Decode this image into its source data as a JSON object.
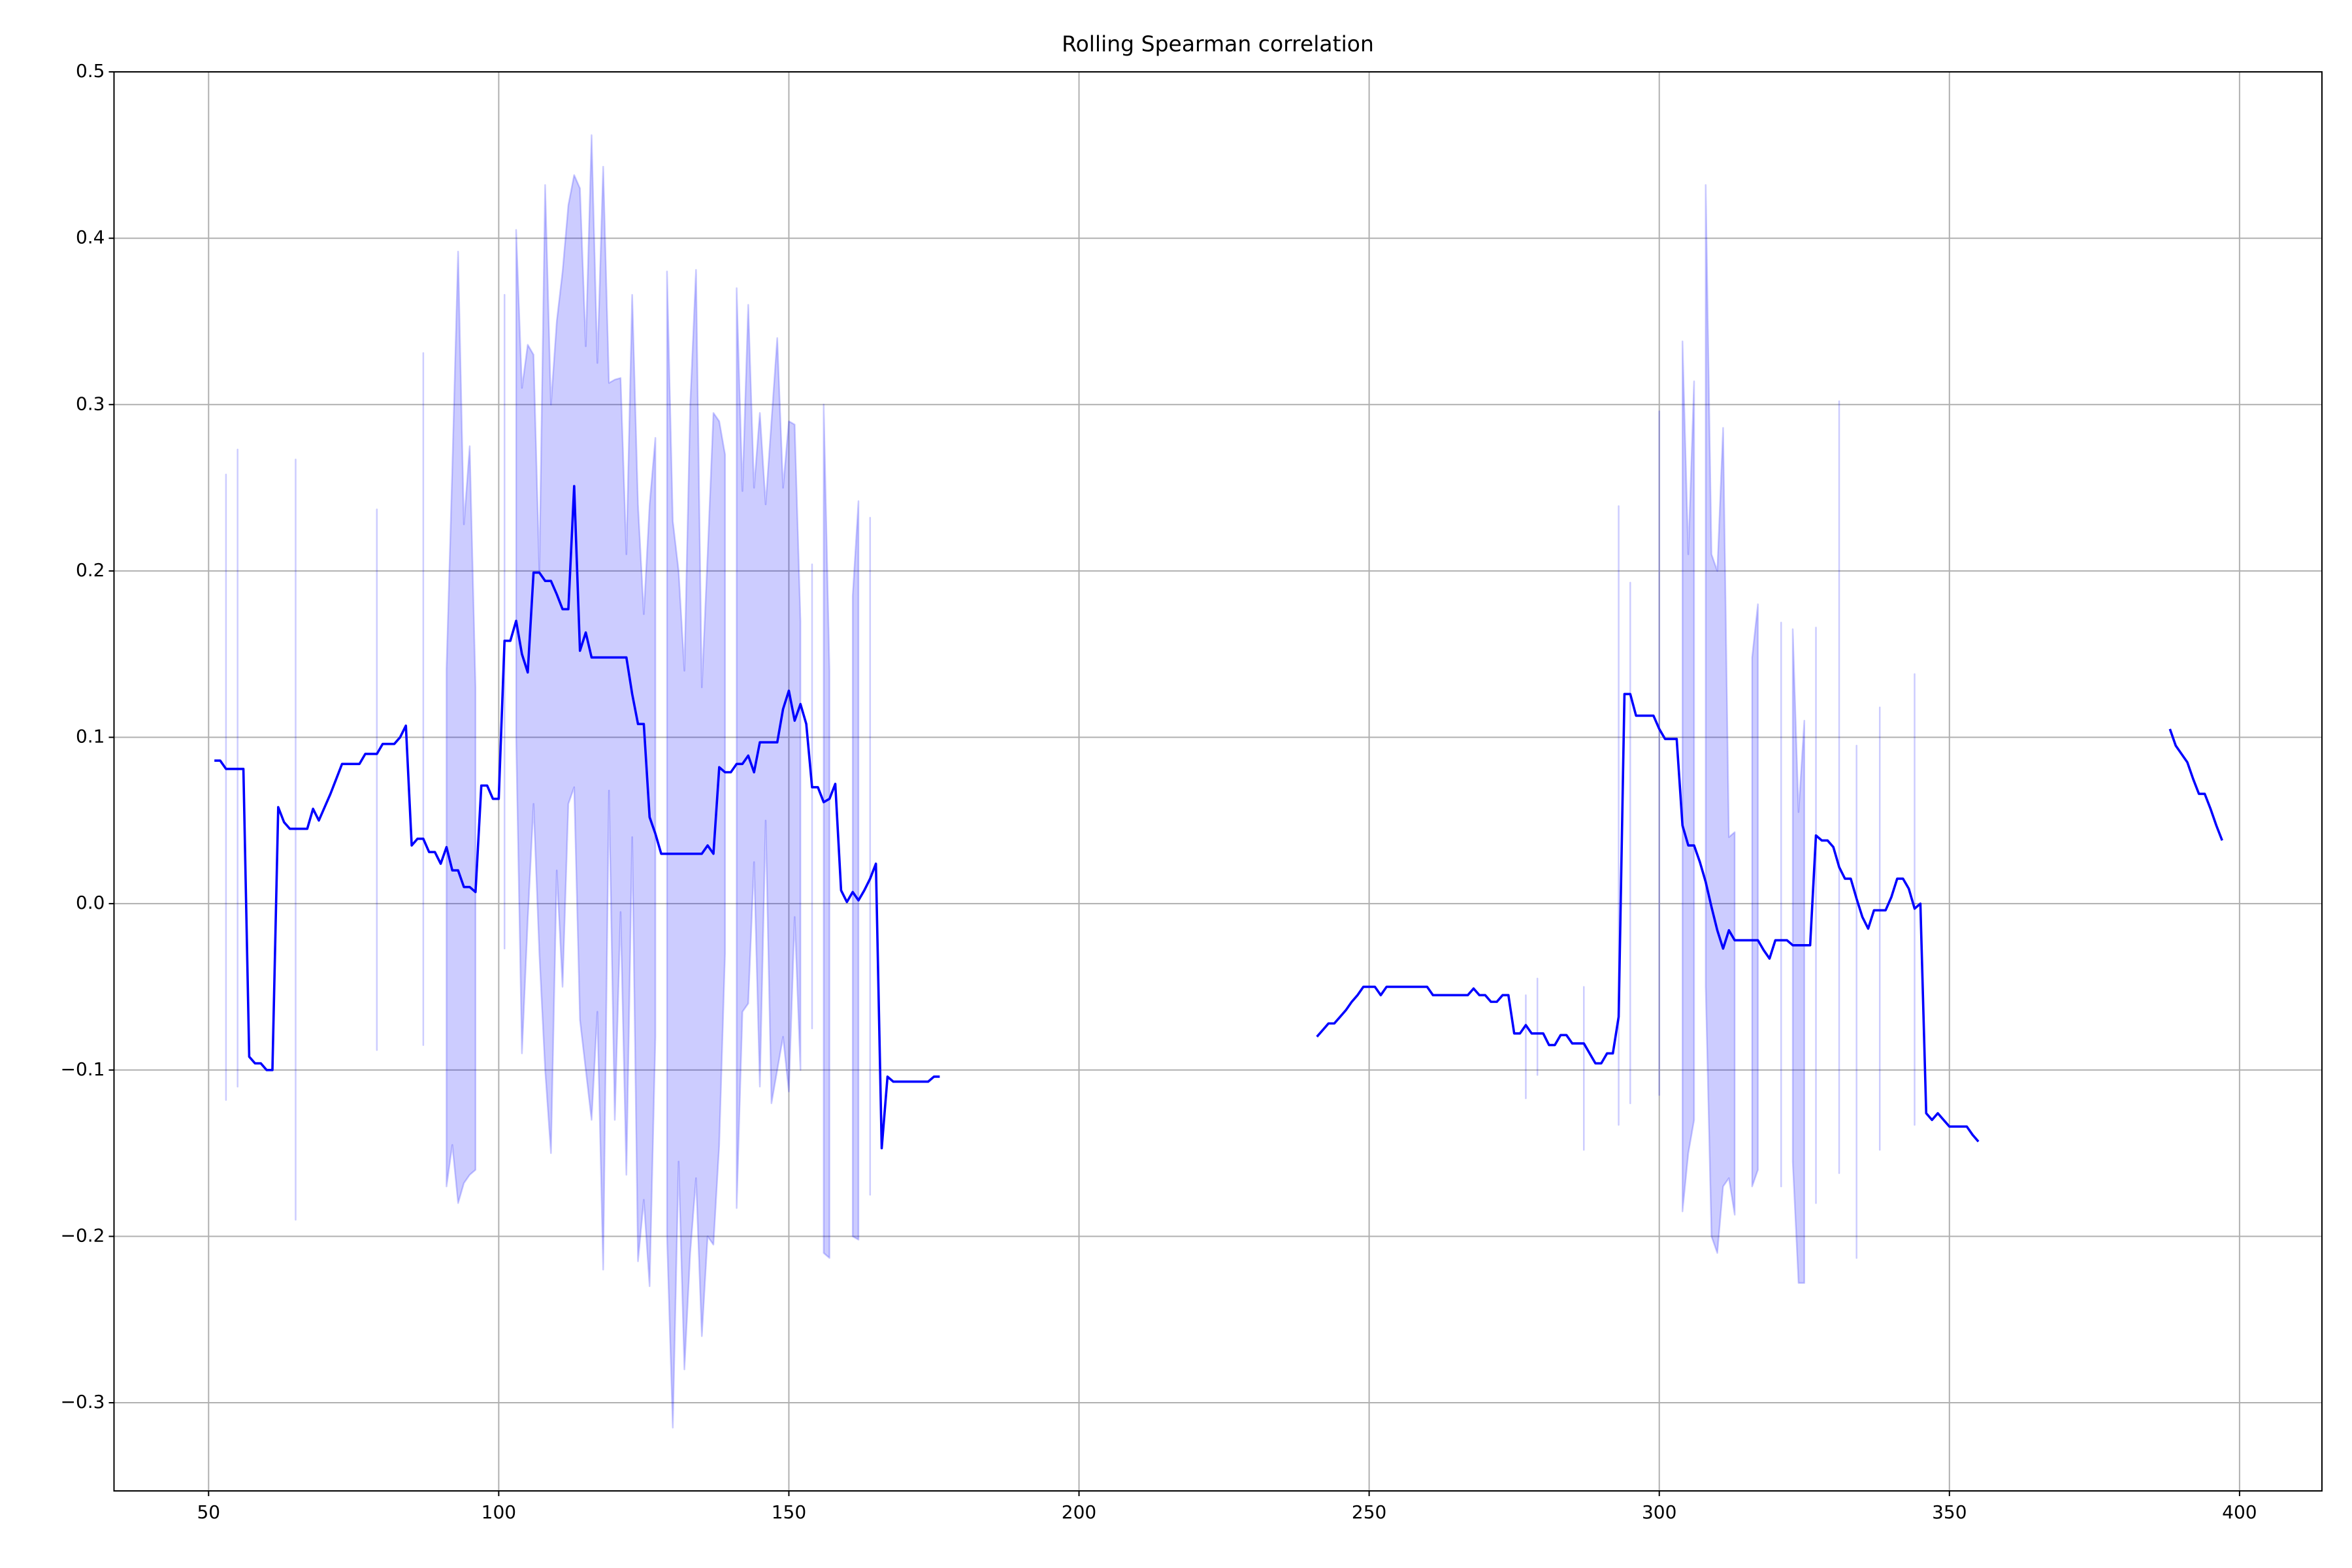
{
  "chart_data": {
    "type": "line",
    "title": "Rolling Spearman correlation",
    "x": [
      51,
      52,
      53,
      54,
      55,
      56,
      57,
      58,
      59,
      60,
      61,
      62,
      63,
      64,
      65,
      66,
      67,
      68,
      69,
      70,
      71,
      72,
      73,
      74,
      75,
      76,
      77,
      78,
      79,
      80,
      81,
      82,
      83,
      84,
      85,
      86,
      87,
      88,
      89,
      90,
      91,
      92,
      93,
      94,
      95,
      96,
      97,
      98,
      99,
      100,
      101,
      102,
      103,
      104,
      105,
      106,
      107,
      108,
      109,
      110,
      111,
      112,
      113,
      114,
      115,
      116,
      117,
      118,
      119,
      120,
      121,
      122,
      123,
      124,
      125,
      126,
      127,
      128,
      129,
      130,
      131,
      132,
      133,
      134,
      135,
      136,
      137,
      138,
      139,
      140,
      141,
      142,
      143,
      144,
      145,
      146,
      147,
      148,
      149,
      150,
      151,
      152,
      153,
      154,
      155,
      156,
      157,
      158,
      159,
      160,
      161,
      162,
      163,
      164,
      165,
      166,
      167,
      168,
      169,
      170,
      171,
      172,
      173,
      174,
      175,
      176,
      null,
      241,
      242,
      243,
      244,
      245,
      246,
      247,
      248,
      249,
      250,
      251,
      252,
      253,
      254,
      255,
      256,
      257,
      258,
      259,
      260,
      261,
      262,
      263,
      264,
      265,
      266,
      267,
      268,
      269,
      270,
      271,
      272,
      273,
      274,
      275,
      276,
      277,
      278,
      279,
      280,
      281,
      282,
      283,
      284,
      285,
      286,
      287,
      288,
      289,
      290,
      291,
      292,
      293,
      294,
      295,
      296,
      297,
      298,
      299,
      300,
      301,
      302,
      303,
      304,
      305,
      306,
      307,
      308,
      309,
      310,
      311,
      312,
      313,
      314,
      315,
      316,
      317,
      318,
      319,
      320,
      321,
      322,
      323,
      324,
      325,
      326,
      327,
      328,
      329,
      330,
      331,
      332,
      333,
      334,
      335,
      336,
      337,
      338,
      339,
      340,
      341,
      342,
      343,
      344,
      345,
      346,
      347,
      348,
      349,
      350,
      351,
      352,
      353,
      354,
      355,
      null,
      388,
      389,
      390,
      391,
      392,
      393,
      394,
      395,
      396,
      397
    ],
    "series": [
      {
        "color": "#0000ff",
        "values": [
          0.086,
          0.086,
          0.081,
          0.081,
          0.081,
          0.081,
          -0.092,
          -0.096,
          -0.096,
          -0.1,
          -0.1,
          0.058,
          0.049,
          0.045,
          0.045,
          0.045,
          0.045,
          0.057,
          0.05,
          0.058,
          0.066,
          0.075,
          0.084,
          0.084,
          0.084,
          0.084,
          0.09,
          0.09,
          0.09,
          0.096,
          0.096,
          0.096,
          0.1,
          0.107,
          0.035,
          0.039,
          0.039,
          0.031,
          0.031,
          0.024,
          0.034,
          0.02,
          0.02,
          0.01,
          0.01,
          0.007,
          0.071,
          0.071,
          0.063,
          0.063,
          0.158,
          0.158,
          0.17,
          0.15,
          0.139,
          0.199,
          0.199,
          0.194,
          0.194,
          0.186,
          0.177,
          0.177,
          0.251,
          0.152,
          0.163,
          0.148,
          0.148,
          0.148,
          0.148,
          0.148,
          0.148,
          0.148,
          0.126,
          0.108,
          0.108,
          0.052,
          0.042,
          0.03,
          0.03,
          0.03,
          0.03,
          0.03,
          0.03,
          0.03,
          0.03,
          0.035,
          0.03,
          0.082,
          0.079,
          0.079,
          0.084,
          0.084,
          0.089,
          0.079,
          0.097,
          0.097,
          0.097,
          0.097,
          0.117,
          0.128,
          0.11,
          0.12,
          0.108,
          0.07,
          0.07,
          0.061,
          0.063,
          0.072,
          0.008,
          0.001,
          0.007,
          0.002,
          0.008,
          0.015,
          0.024,
          -0.147,
          -0.104,
          -0.107,
          -0.107,
          -0.107,
          -0.107,
          -0.107,
          -0.107,
          -0.107,
          -0.104,
          -0.104,
          null,
          -0.08,
          -0.076,
          -0.072,
          -0.072,
          -0.068,
          -0.064,
          -0.059,
          -0.055,
          -0.05,
          -0.05,
          -0.05,
          -0.055,
          -0.05,
          -0.05,
          -0.05,
          -0.05,
          -0.05,
          -0.05,
          -0.05,
          -0.05,
          -0.055,
          -0.055,
          -0.055,
          -0.055,
          -0.055,
          -0.055,
          -0.055,
          -0.051,
          -0.055,
          -0.055,
          -0.059,
          -0.059,
          -0.055,
          -0.055,
          -0.078,
          -0.078,
          -0.073,
          -0.078,
          -0.078,
          -0.078,
          -0.085,
          -0.085,
          -0.079,
          -0.079,
          -0.084,
          -0.084,
          -0.084,
          -0.09,
          -0.096,
          -0.096,
          -0.09,
          -0.09,
          -0.068,
          0.126,
          0.126,
          0.113,
          0.113,
          0.113,
          0.113,
          0.105,
          0.099,
          0.099,
          0.099,
          0.047,
          0.035,
          0.035,
          0.025,
          0.013,
          -0.002,
          -0.016,
          -0.027,
          -0.016,
          -0.022,
          -0.022,
          -0.022,
          -0.022,
          -0.022,
          -0.028,
          -0.033,
          -0.022,
          -0.022,
          -0.022,
          -0.025,
          -0.025,
          -0.025,
          -0.025,
          0.041,
          0.038,
          0.038,
          0.034,
          0.022,
          0.015,
          0.015,
          0.003,
          -0.008,
          -0.015,
          -0.004,
          -0.004,
          -0.004,
          0.004,
          0.015,
          0.015,
          0.009,
          -0.003,
          0,
          -0.126,
          -0.13,
          -0.126,
          -0.13,
          -0.134,
          -0.134,
          -0.134,
          -0.134,
          -0.139,
          -0.143,
          null,
          0.105,
          0.095,
          0.09,
          0.085,
          0.075,
          0.066,
          0.066,
          0.057,
          0.047,
          0.038
        ]
      }
    ],
    "band": {
      "color": "#0000ff",
      "alpha": 0.2,
      "lower": [
        null,
        null,
        -0.118,
        null,
        -0.11,
        null,
        null,
        null,
        null,
        null,
        null,
        null,
        null,
        null,
        -0.19,
        null,
        null,
        null,
        null,
        null,
        null,
        null,
        null,
        null,
        null,
        null,
        null,
        null,
        -0.088,
        null,
        null,
        null,
        null,
        null,
        null,
        null,
        -0.085,
        null,
        null,
        null,
        -0.17,
        -0.145,
        -0.18,
        -0.168,
        -0.163,
        -0.16,
        null,
        null,
        null,
        null,
        -0.027,
        null,
        0.1,
        -0.09,
        -0.01,
        0.06,
        -0.03,
        -0.1,
        -0.15,
        0.02,
        -0.05,
        0.06,
        0.07,
        -0.07,
        -0.1,
        -0.13,
        -0.065,
        -0.22,
        0.068,
        -0.13,
        -0.005,
        -0.163,
        0.04,
        -0.215,
        -0.178,
        -0.23,
        -0.08,
        null,
        -0.2,
        -0.315,
        -0.155,
        -0.28,
        -0.21,
        -0.165,
        -0.26,
        -0.2,
        -0.205,
        -0.145,
        -0.03,
        null,
        -0.183,
        -0.065,
        -0.06,
        0.025,
        -0.11,
        0.05,
        -0.12,
        -0.1,
        -0.08,
        -0.113,
        -0.008,
        -0.1,
        null,
        -0.075,
        null,
        -0.21,
        -0.213,
        null,
        null,
        null,
        -0.2,
        -0.202,
        null,
        -0.175,
        null,
        null,
        null,
        null,
        null,
        null,
        null,
        null,
        null,
        null,
        null,
        null,
        null,
        null,
        null,
        null,
        null,
        null,
        null,
        null,
        null,
        null,
        null,
        null,
        null,
        null,
        null,
        null,
        null,
        null,
        null,
        null,
        null,
        null,
        null,
        null,
        null,
        null,
        null,
        null,
        null,
        null,
        null,
        null,
        null,
        null,
        null,
        null,
        null,
        -0.117,
        null,
        -0.103,
        null,
        null,
        null,
        null,
        null,
        null,
        null,
        -0.148,
        null,
        null,
        null,
        null,
        null,
        -0.133,
        null,
        -0.12,
        null,
        null,
        null,
        null,
        -0.115,
        null,
        null,
        null,
        -0.185,
        -0.15,
        -0.13,
        null,
        -0.05,
        -0.2,
        -0.21,
        -0.17,
        -0.165,
        -0.187,
        null,
        null,
        -0.17,
        -0.16,
        null,
        null,
        null,
        -0.17,
        null,
        -0.155,
        -0.228,
        -0.228,
        null,
        -0.18,
        null,
        null,
        null,
        -0.162,
        null,
        null,
        -0.213,
        null,
        null,
        null,
        -0.148,
        null,
        null,
        null,
        null,
        null,
        -0.133,
        null,
        null,
        null,
        null,
        null,
        null,
        null,
        null,
        null,
        null,
        null,
        null,
        null,
        null,
        null,
        null,
        null,
        null,
        null,
        null,
        null,
        null
      ],
      "upper": [
        null,
        null,
        0.258,
        null,
        0.273,
        null,
        null,
        null,
        null,
        null,
        null,
        null,
        null,
        null,
        0.267,
        null,
        null,
        null,
        null,
        null,
        null,
        null,
        null,
        null,
        null,
        null,
        null,
        null,
        0.237,
        null,
        null,
        null,
        null,
        null,
        null,
        null,
        0.331,
        null,
        null,
        null,
        0.141,
        0.262,
        0.392,
        0.228,
        0.275,
        0.13,
        null,
        null,
        null,
        null,
        0.366,
        null,
        0.405,
        0.31,
        0.336,
        0.33,
        0.2,
        0.432,
        0.3,
        0.35,
        0.38,
        0.42,
        0.438,
        0.43,
        0.335,
        0.462,
        0.325,
        0.443,
        0.313,
        0.315,
        0.316,
        0.21,
        0.366,
        0.24,
        0.174,
        0.24,
        0.28,
        null,
        0.38,
        0.23,
        0.2,
        0.14,
        0.3,
        0.381,
        0.13,
        0.21,
        0.295,
        0.29,
        0.27,
        null,
        0.37,
        0.248,
        0.36,
        0.25,
        0.295,
        0.24,
        0.29,
        0.34,
        0.25,
        0.29,
        0.288,
        0.17,
        null,
        0.204,
        null,
        0.3,
        0.14,
        null,
        null,
        null,
        0.185,
        0.242,
        null,
        0.232,
        null,
        null,
        null,
        null,
        null,
        null,
        null,
        null,
        null,
        null,
        null,
        null,
        null,
        null,
        null,
        null,
        null,
        null,
        null,
        null,
        null,
        null,
        null,
        null,
        null,
        null,
        null,
        null,
        null,
        null,
        null,
        null,
        null,
        null,
        null,
        null,
        null,
        null,
        null,
        null,
        null,
        null,
        null,
        null,
        null,
        null,
        null,
        null,
        null,
        -0.055,
        null,
        -0.045,
        null,
        null,
        null,
        null,
        null,
        null,
        null,
        -0.05,
        null,
        null,
        null,
        null,
        null,
        0.239,
        null,
        0.193,
        null,
        null,
        null,
        null,
        0.296,
        null,
        null,
        null,
        0.338,
        0.21,
        0.314,
        null,
        0.432,
        0.21,
        0.2,
        0.286,
        0.04,
        0.043,
        null,
        null,
        0.148,
        0.18,
        null,
        null,
        null,
        0.169,
        null,
        0.165,
        0.055,
        0.11,
        null,
        0.166,
        null,
        null,
        null,
        0.302,
        null,
        null,
        0.095,
        null,
        null,
        null,
        0.118,
        null,
        null,
        null,
        null,
        null,
        0.138,
        null,
        null,
        null,
        null,
        null,
        null,
        null,
        null,
        null,
        null,
        null,
        null,
        null,
        null,
        null,
        null,
        null,
        null,
        null,
        null,
        null,
        null
      ]
    },
    "xlim": [
      33.7,
      414.2
    ],
    "ylim": [
      -0.353,
      0.5
    ],
    "xticks": [
      50,
      100,
      150,
      200,
      250,
      300,
      350,
      400
    ],
    "yticks": [
      {
        "value": -0.3,
        "label": "−0.3"
      },
      {
        "value": -0.2,
        "label": "−0.2"
      },
      {
        "value": -0.1,
        "label": "−0.1"
      },
      {
        "value": 0,
        "label": "0.0"
      },
      0.1,
      0.2,
      0.3,
      0.4,
      0.5
    ],
    "grid": true
  }
}
